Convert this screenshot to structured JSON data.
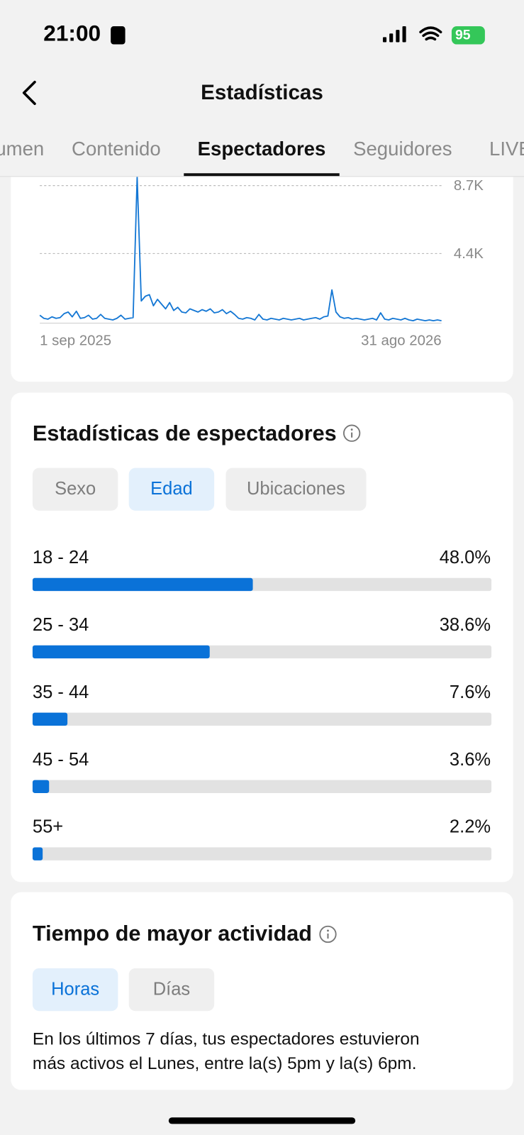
{
  "status_bar": {
    "time": "21:00",
    "battery": "95"
  },
  "header": {
    "title": "Estadísticas"
  },
  "tabs": [
    "Resumen",
    "Contenido",
    "Espectadores",
    "Seguidores",
    "LIVE"
  ],
  "active_tab": 2,
  "chart_data": [
    {
      "type": "line",
      "color": "#1477d4",
      "x_labels": [
        "1 sep 2025",
        "31 ago 2026"
      ],
      "ylim": [
        0,
        9250
      ],
      "yticks": [
        {
          "value": 4400,
          "label": "4.4K"
        },
        {
          "value": 8700,
          "label": "8.7K"
        }
      ],
      "grid": true,
      "values": [
        500,
        300,
        250,
        400,
        300,
        350,
        600,
        700,
        400,
        750,
        300,
        350,
        500,
        250,
        300,
        550,
        300,
        250,
        200,
        300,
        500,
        250,
        300,
        350,
        9250,
        1400,
        1700,
        1800,
        1100,
        1500,
        1200,
        900,
        1300,
        800,
        1000,
        700,
        650,
        900,
        800,
        700,
        850,
        750,
        900,
        650,
        700,
        850,
        600,
        750,
        550,
        300,
        250,
        350,
        300,
        200,
        550,
        250,
        200,
        300,
        250,
        200,
        300,
        250,
        200,
        250,
        300,
        200,
        250,
        300,
        350,
        250,
        400,
        450,
        2100,
        700,
        400,
        300,
        350,
        250,
        300,
        250,
        200,
        250,
        300,
        200,
        650,
        250,
        200,
        300,
        250,
        200,
        300,
        200,
        150,
        250,
        200,
        150,
        200,
        150,
        200,
        150
      ]
    },
    {
      "type": "bar",
      "title": "Estadísticas de espectadores",
      "color": "#0a72d8",
      "categories": [
        "18 - 24",
        "25 - 34",
        "35 - 44",
        "45 - 54",
        "55+"
      ],
      "values": [
        48.0,
        38.6,
        7.6,
        3.6,
        2.2
      ],
      "value_labels": [
        "48.0%",
        "38.6%",
        "7.6%",
        "3.6%",
        "2.2%"
      ],
      "xlim": [
        0,
        100
      ]
    }
  ],
  "viewer_filters": [
    "Sexo",
    "Edad",
    "Ubicaciones"
  ],
  "viewer_active_filter": 1,
  "activity": {
    "title": "Tiempo de mayor actividad",
    "filters": [
      "Horas",
      "Días"
    ],
    "active_filter": 0,
    "lines": [
      "En los últimos 7 días, tus espectadores estuvieron",
      "más activos el Lunes, entre la(s) 5pm y la(s) 6pm."
    ]
  }
}
